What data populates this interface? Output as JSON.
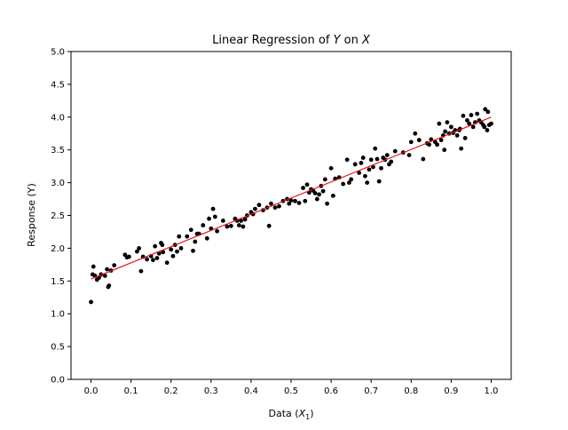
{
  "chart_data": {
    "type": "scatter",
    "title": "Linear Regression of Y on X",
    "title_parts": [
      {
        "text": "Linear Regression of ",
        "italic": false
      },
      {
        "text": "Y",
        "italic": true
      },
      {
        "text": " on ",
        "italic": false
      },
      {
        "text": "X",
        "italic": true
      }
    ],
    "xlabel": "Data (X1)",
    "xlabel_parts": [
      {
        "text": "Data (",
        "italic": false,
        "sub": false
      },
      {
        "text": "X",
        "italic": true,
        "sub": false
      },
      {
        "text": "1",
        "italic": false,
        "sub": true
      },
      {
        "text": ")",
        "italic": false,
        "sub": false
      }
    ],
    "ylabel": "Response (Y)",
    "xlim": [
      -0.05,
      1.05
    ],
    "ylim": [
      0.0,
      5.0
    ],
    "xticks": [
      "0.0",
      "0.1",
      "0.2",
      "0.3",
      "0.4",
      "0.5",
      "0.6",
      "0.7",
      "0.8",
      "0.9",
      "1.0"
    ],
    "yticks": [
      "0.0",
      "0.5",
      "1.0",
      "1.5",
      "2.0",
      "2.5",
      "3.0",
      "3.5",
      "4.0",
      "4.5",
      "5.0"
    ],
    "grid": false,
    "legend": "none",
    "marker_color": "#000000",
    "line_color": "#e41a1c",
    "fit_line": {
      "x": [
        0.0,
        1.0
      ],
      "y": [
        1.53,
        4.0
      ]
    },
    "points": {
      "x": [
        0.0,
        0.004,
        0.006,
        0.01,
        0.015,
        0.02,
        0.025,
        0.035,
        0.04,
        0.043,
        0.045,
        0.05,
        0.058,
        0.085,
        0.09,
        0.095,
        0.115,
        0.12,
        0.125,
        0.13,
        0.14,
        0.15,
        0.155,
        0.16,
        0.165,
        0.17,
        0.175,
        0.178,
        0.18,
        0.19,
        0.2,
        0.205,
        0.21,
        0.215,
        0.22,
        0.225,
        0.24,
        0.25,
        0.255,
        0.26,
        0.265,
        0.27,
        0.28,
        0.29,
        0.295,
        0.3,
        0.305,
        0.31,
        0.315,
        0.33,
        0.34,
        0.35,
        0.36,
        0.365,
        0.37,
        0.375,
        0.38,
        0.385,
        0.39,
        0.4,
        0.405,
        0.41,
        0.42,
        0.43,
        0.44,
        0.445,
        0.45,
        0.46,
        0.47,
        0.48,
        0.49,
        0.495,
        0.5,
        0.51,
        0.52,
        0.53,
        0.535,
        0.54,
        0.545,
        0.55,
        0.555,
        0.56,
        0.565,
        0.57,
        0.575,
        0.58,
        0.585,
        0.59,
        0.6,
        0.605,
        0.61,
        0.62,
        0.63,
        0.64,
        0.645,
        0.65,
        0.66,
        0.67,
        0.675,
        0.68,
        0.685,
        0.69,
        0.695,
        0.7,
        0.705,
        0.71,
        0.715,
        0.72,
        0.725,
        0.73,
        0.735,
        0.74,
        0.745,
        0.75,
        0.76,
        0.78,
        0.795,
        0.8,
        0.81,
        0.82,
        0.83,
        0.84,
        0.845,
        0.85,
        0.86,
        0.865,
        0.87,
        0.875,
        0.88,
        0.883,
        0.885,
        0.89,
        0.895,
        0.9,
        0.905,
        0.91,
        0.915,
        0.92,
        0.922,
        0.925,
        0.93,
        0.935,
        0.94,
        0.945,
        0.95,
        0.955,
        0.96,
        0.965,
        0.97,
        0.975,
        0.98,
        0.983,
        0.985,
        0.99,
        0.992,
        0.995,
        1.0
      ],
      "y": [
        1.18,
        1.6,
        1.72,
        1.58,
        1.52,
        1.55,
        1.6,
        1.58,
        1.68,
        1.41,
        1.43,
        1.66,
        1.74,
        1.9,
        1.86,
        1.87,
        1.95,
        2.0,
        1.65,
        1.87,
        1.83,
        1.88,
        1.82,
        2.03,
        1.85,
        1.92,
        2.08,
        2.05,
        1.94,
        1.78,
        1.98,
        1.88,
        2.05,
        1.95,
        2.18,
        2.0,
        2.18,
        2.28,
        1.96,
        2.1,
        2.22,
        2.22,
        2.35,
        2.15,
        2.45,
        2.3,
        2.6,
        2.48,
        2.26,
        2.42,
        2.33,
        2.34,
        2.45,
        2.42,
        2.35,
        2.42,
        2.33,
        2.44,
        2.5,
        2.55,
        2.52,
        2.6,
        2.66,
        2.58,
        2.62,
        2.34,
        2.68,
        2.62,
        2.64,
        2.72,
        2.75,
        2.68,
        2.73,
        2.72,
        2.69,
        2.92,
        2.72,
        2.97,
        2.85,
        2.9,
        2.88,
        2.84,
        2.75,
        2.82,
        2.95,
        2.87,
        3.05,
        2.68,
        3.22,
        2.8,
        3.06,
        3.08,
        2.98,
        3.35,
        3.0,
        3.05,
        3.28,
        3.15,
        3.3,
        3.38,
        3.1,
        3.0,
        3.2,
        3.35,
        3.24,
        3.52,
        3.36,
        3.02,
        3.22,
        3.38,
        3.35,
        3.42,
        3.28,
        3.32,
        3.48,
        3.46,
        3.42,
        3.62,
        3.75,
        3.65,
        3.36,
        3.6,
        3.58,
        3.66,
        3.62,
        3.58,
        3.9,
        3.65,
        3.72,
        3.5,
        3.78,
        3.92,
        3.75,
        3.85,
        3.76,
        3.8,
        3.72,
        3.8,
        3.82,
        3.52,
        4.02,
        3.68,
        3.95,
        3.9,
        4.03,
        3.85,
        3.92,
        4.05,
        3.95,
        3.92,
        3.88,
        3.85,
        4.12,
        3.8,
        4.08,
        3.88,
        3.9
      ]
    }
  }
}
